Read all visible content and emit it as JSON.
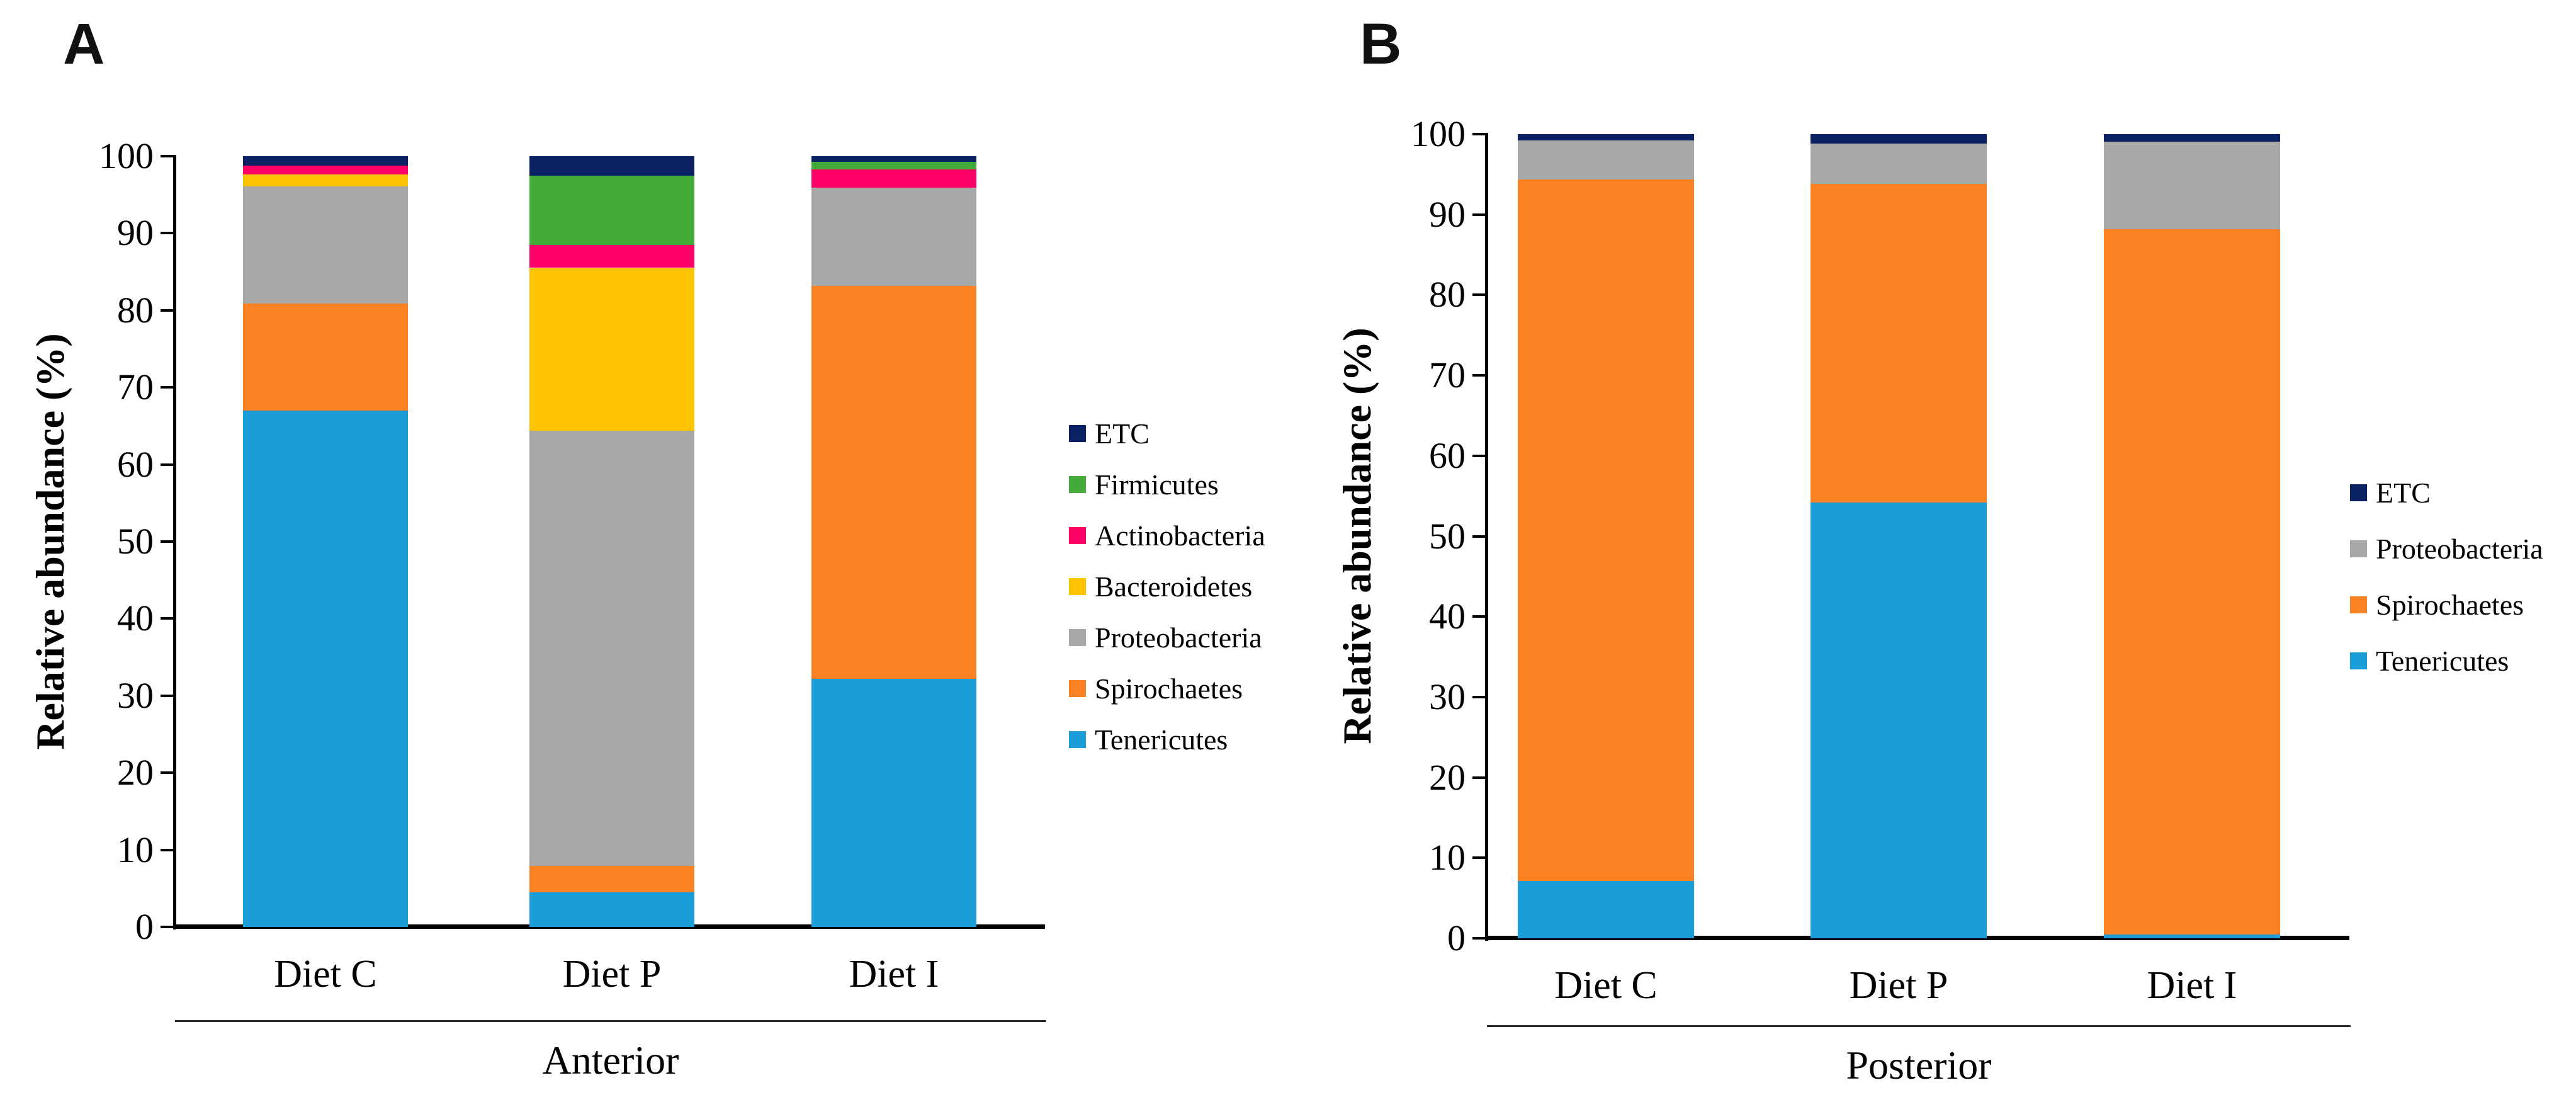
{
  "figure": {
    "y_tick_values": [
      0,
      10,
      20,
      30,
      40,
      50,
      60,
      70,
      80,
      90,
      100
    ],
    "palette": {
      "ETC": "#0A2164",
      "Firmicutes": "#43AB38",
      "Actinobacteria": "#FF0066",
      "Bacteroidetes": "#FFC303",
      "Proteobacteria": "#A8A8A8",
      "Spirochaetes": "#FB8122",
      "Tenericutes": "#1B9DD9"
    }
  },
  "chart_data": [
    {
      "type": "bar",
      "stacked": true,
      "panel_letter": "A",
      "group_label": "Anterior",
      "ylabel": "Relative abundance (%)",
      "ylim": [
        0,
        100
      ],
      "grid": false,
      "legend_position": "right",
      "categories": [
        "Diet C",
        "Diet P",
        "Diet I"
      ],
      "legend_order": [
        "ETC",
        "Firmicutes",
        "Actinobacteria",
        "Bacteroidetes",
        "Proteobacteria",
        "Spirochaetes",
        "Tenericutes"
      ],
      "series": [
        {
          "name": "Tenericutes",
          "values": [
            67.0,
            4.5,
            32.2
          ]
        },
        {
          "name": "Spirochaetes",
          "values": [
            13.9,
            3.4,
            51.0
          ]
        },
        {
          "name": "Proteobacteria",
          "values": [
            15.2,
            56.5,
            12.7
          ]
        },
        {
          "name": "Bacteroidetes",
          "values": [
            1.5,
            21.1,
            0.0
          ]
        },
        {
          "name": "Actinobacteria",
          "values": [
            1.2,
            3.0,
            2.4
          ]
        },
        {
          "name": "Firmicutes",
          "values": [
            0.0,
            9.0,
            1.0
          ]
        },
        {
          "name": "ETC",
          "values": [
            1.2,
            2.5,
            0.7
          ]
        }
      ]
    },
    {
      "type": "bar",
      "stacked": true,
      "panel_letter": "B",
      "group_label": "Posterior",
      "ylabel": "Relative abundance (%)",
      "ylim": [
        0,
        100
      ],
      "grid": false,
      "legend_position": "right",
      "categories": [
        "Diet C",
        "Diet P",
        "Diet I"
      ],
      "legend_order": [
        "ETC",
        "Proteobacteria",
        "Spirochaetes",
        "Tenericutes"
      ],
      "series": [
        {
          "name": "Tenericutes",
          "values": [
            7.1,
            54.2,
            0.5
          ]
        },
        {
          "name": "Spirochaetes",
          "values": [
            87.3,
            39.6,
            87.7
          ]
        },
        {
          "name": "Proteobacteria",
          "values": [
            4.8,
            5.0,
            10.9
          ]
        },
        {
          "name": "ETC",
          "values": [
            0.8,
            1.2,
            0.9
          ]
        }
      ]
    }
  ]
}
